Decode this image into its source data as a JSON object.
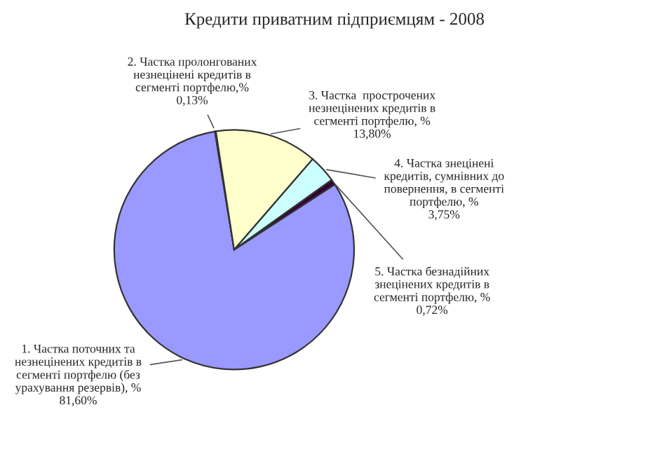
{
  "chart_data": {
    "type": "pie",
    "title": "Кредити приватним підприємцям - 2008",
    "categories": [
      "1. Частка поточних та незнецінених кредитів в сегменті портфелю (без урахування резервів), %",
      "2. Частка пролонгованих незнецінені кредитів в сегменті портфелю,%",
      "3. Частка  прострочених незнецінених кредитів в сегменті портфелю, %",
      "4. Частка знецінені кредитів, сумнівних до повернення, в сегменті портфелю, %",
      "5. Частка безнадійних знецінених кредитів в сегменті портфелю, %"
    ],
    "values": [
      81.6,
      0.13,
      13.8,
      3.75,
      0.72
    ],
    "value_labels": [
      "81,60%",
      "0,13%",
      "13,80%",
      "3,75%",
      "0,72%"
    ],
    "colors": [
      "#9999ff",
      "#993366",
      "#ffffcc",
      "#ccffff",
      "#330033"
    ],
    "legend": false
  }
}
